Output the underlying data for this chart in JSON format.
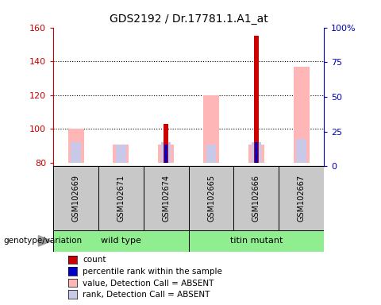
{
  "title": "GDS2192 / Dr.17781.1.A1_at",
  "samples": [
    "GSM102669",
    "GSM102671",
    "GSM102674",
    "GSM102665",
    "GSM102666",
    "GSM102667"
  ],
  "ylim_left": [
    78,
    160
  ],
  "ylim_right": [
    0,
    100
  ],
  "yticks_left": [
    80,
    100,
    120,
    140,
    160
  ],
  "yticks_right": [
    0,
    25,
    50,
    75,
    100
  ],
  "ytick_labels_right": [
    "0",
    "25",
    "50",
    "75",
    "100%"
  ],
  "bar_base": 80,
  "count_values": [
    null,
    null,
    103,
    null,
    155,
    null
  ],
  "count_color": "#cc0000",
  "percentile_values": [
    null,
    null,
    91,
    null,
    92,
    null
  ],
  "percentile_color": "#0000cc",
  "absent_value_values": [
    100,
    91,
    91,
    120,
    91,
    137
  ],
  "absent_value_color": "#ffb6b6",
  "absent_rank_values": [
    92,
    91,
    92,
    91,
    92,
    94
  ],
  "absent_rank_color": "#c8c8e8",
  "legend_labels": [
    "count",
    "percentile rank within the sample",
    "value, Detection Call = ABSENT",
    "rank, Detection Call = ABSENT"
  ],
  "legend_colors": [
    "#cc0000",
    "#0000cc",
    "#ffb6b6",
    "#c8c8e8"
  ],
  "label_color_left": "#cc0000",
  "label_color_right": "#0000bb",
  "genotype_label": "genotype/variation",
  "wt_label": "wild type",
  "tm_label": "titin mutant",
  "sample_bg": "#c8c8c8",
  "group_bg": "#90EE90"
}
